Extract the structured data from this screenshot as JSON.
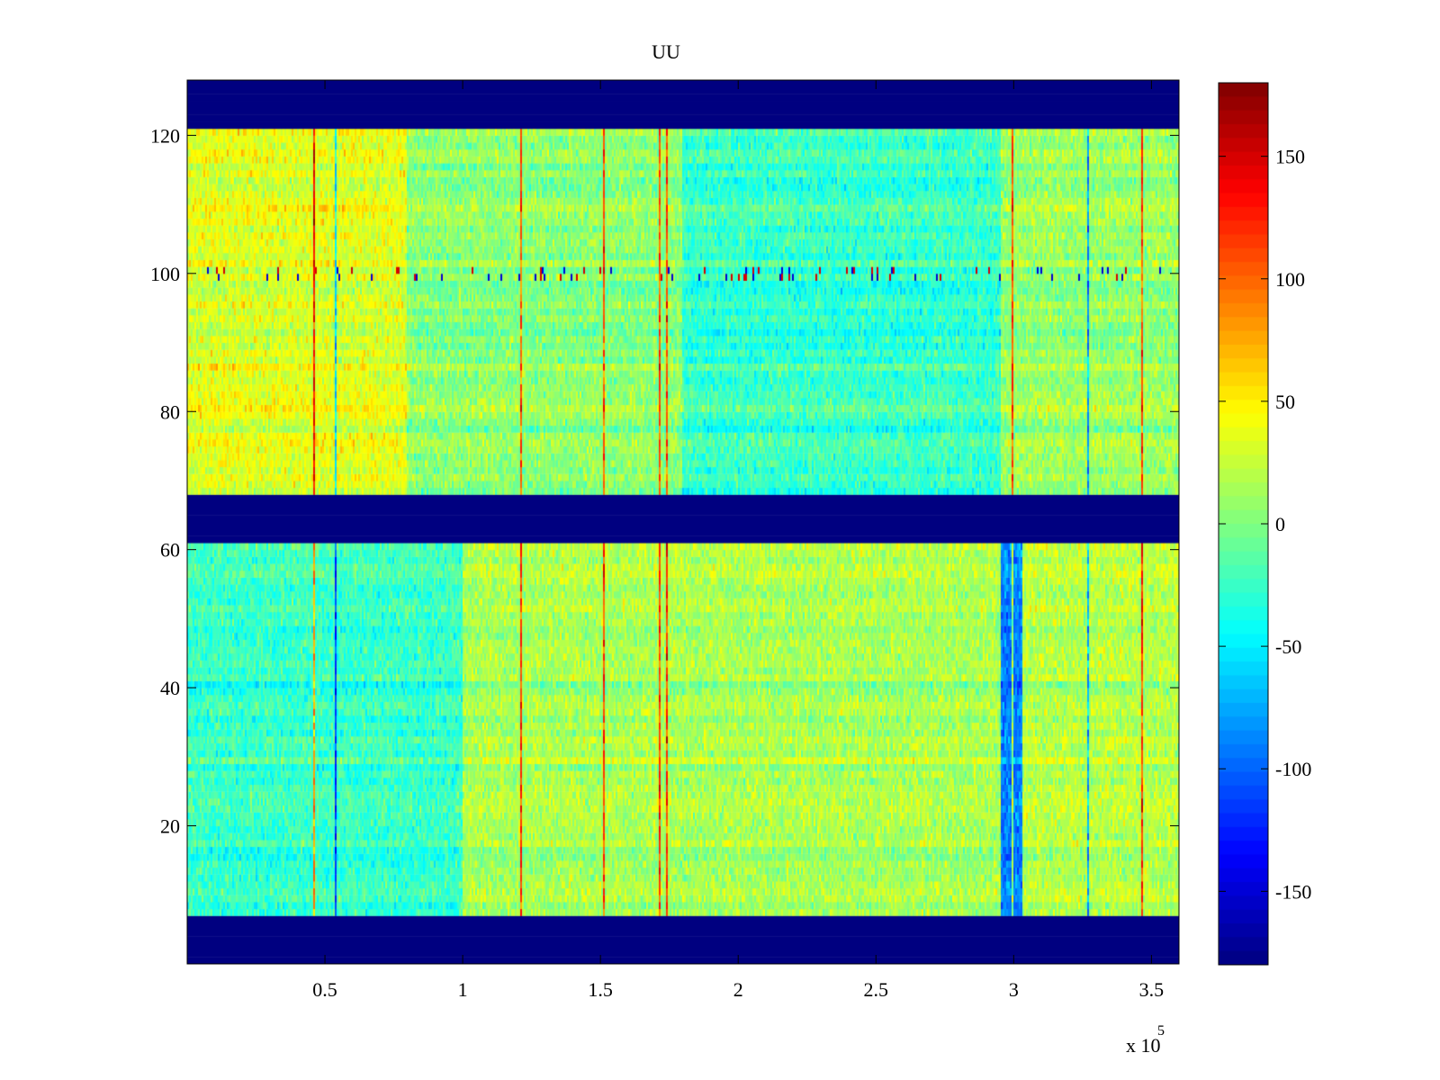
{
  "chart_data": {
    "type": "heatmap",
    "title": "UU",
    "xlabel": "",
    "ylabel": "",
    "x_exponent_label": "x 10",
    "x_exponent_power": "5",
    "xlim": [
      0,
      360000
    ],
    "ylim": [
      0,
      128
    ],
    "x_ticks": [
      {
        "value": 50000,
        "label": "0.5"
      },
      {
        "value": 100000,
        "label": "1"
      },
      {
        "value": 150000,
        "label": "1.5"
      },
      {
        "value": 200000,
        "label": "2"
      },
      {
        "value": 250000,
        "label": "2.5"
      },
      {
        "value": 300000,
        "label": "3"
      },
      {
        "value": 350000,
        "label": "3.5"
      }
    ],
    "y_ticks": [
      {
        "value": 20,
        "label": "20"
      },
      {
        "value": 40,
        "label": "40"
      },
      {
        "value": 60,
        "label": "60"
      },
      {
        "value": 80,
        "label": "80"
      },
      {
        "value": 100,
        "label": "100"
      },
      {
        "value": 120,
        "label": "120"
      }
    ],
    "colormap": "jet",
    "clim": [
      -180,
      180
    ],
    "colorbar_ticks": [
      {
        "value": 150,
        "label": "150"
      },
      {
        "value": 100,
        "label": "100"
      },
      {
        "value": 50,
        "label": "50"
      },
      {
        "value": 0,
        "label": "0"
      },
      {
        "value": -50,
        "label": "-50"
      },
      {
        "value": -100,
        "label": "-100"
      },
      {
        "value": -150,
        "label": "-150"
      }
    ],
    "empty_row_bands": [
      [
        0,
        7
      ],
      [
        61,
        68
      ],
      [
        121,
        128
      ]
    ],
    "regions": [
      {
        "x": [
          0,
          80000
        ],
        "y": [
          68,
          121
        ],
        "mean": 35
      },
      {
        "x": [
          80000,
          180000
        ],
        "y": [
          68,
          121
        ],
        "mean": 5
      },
      {
        "x": [
          180000,
          295000
        ],
        "y": [
          68,
          121
        ],
        "mean": -25
      },
      {
        "x": [
          295000,
          360000
        ],
        "y": [
          68,
          121
        ],
        "mean": 10
      },
      {
        "x": [
          0,
          100000
        ],
        "y": [
          7,
          61
        ],
        "mean": -25
      },
      {
        "x": [
          100000,
          295000
        ],
        "y": [
          7,
          61
        ],
        "mean": 15
      },
      {
        "x": [
          295000,
          303000
        ],
        "y": [
          7,
          61
        ],
        "mean": -90
      },
      {
        "x": [
          303000,
          360000
        ],
        "y": [
          7,
          61
        ],
        "mean": 20
      }
    ],
    "notable_row_y": 100,
    "grid": false
  }
}
